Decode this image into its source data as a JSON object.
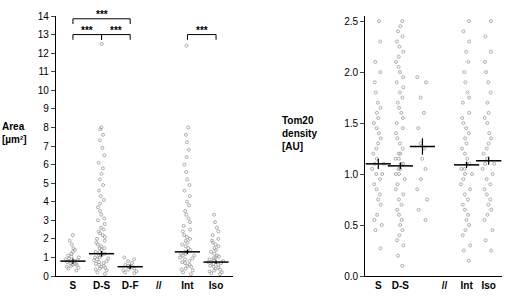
{
  "chart_data": [
    {
      "type": "strip",
      "y_label": "Area [µm²]",
      "categories": [
        "S",
        "D-S",
        "D-F",
        "//",
        "Int",
        "Iso"
      ],
      "values": [
        [
          0.3,
          0.4,
          0.45,
          0.5,
          0.55,
          0.6,
          0.6,
          0.65,
          0.7,
          0.75,
          0.8,
          0.8,
          0.85,
          0.9,
          0.95,
          1.0,
          1.05,
          1.1,
          1.2,
          1.3,
          1.4,
          1.5,
          1.7,
          1.9,
          2.2
        ],
        [
          0.1,
          0.2,
          0.3,
          0.35,
          0.4,
          0.45,
          0.5,
          0.55,
          0.6,
          0.65,
          0.7,
          0.75,
          0.8,
          0.85,
          0.9,
          0.95,
          1.0,
          1.0,
          1.1,
          1.1,
          1.2,
          1.2,
          1.3,
          1.3,
          1.4,
          1.5,
          1.5,
          1.6,
          1.7,
          1.8,
          1.9,
          2.0,
          2.1,
          2.2,
          2.3,
          2.4,
          2.5,
          2.6,
          2.8,
          3.0,
          3.1,
          3.3,
          3.5,
          3.7,
          3.9,
          4.1,
          4.3,
          4.6,
          4.9,
          5.2,
          5.5,
          5.8,
          6.1,
          6.5,
          6.9,
          7.3,
          7.6,
          7.9,
          8.0,
          12.5
        ],
        [
          0.15,
          0.2,
          0.25,
          0.3,
          0.35,
          0.4,
          0.45,
          0.5,
          0.55,
          0.6,
          0.7,
          0.8,
          0.9,
          1.0
        ],
        [],
        [
          0.1,
          0.2,
          0.3,
          0.35,
          0.4,
          0.5,
          0.55,
          0.6,
          0.7,
          0.75,
          0.8,
          0.9,
          0.95,
          1.0,
          1.1,
          1.1,
          1.2,
          1.2,
          1.3,
          1.3,
          1.4,
          1.5,
          1.6,
          1.7,
          1.8,
          1.9,
          2.0,
          2.1,
          2.2,
          2.4,
          2.5,
          2.7,
          2.9,
          3.1,
          3.3,
          3.5,
          3.8,
          4.0,
          4.3,
          4.6,
          4.9,
          5.2,
          5.6,
          6.0,
          6.4,
          6.8,
          7.2,
          7.6,
          8.0,
          12.4
        ],
        [
          0.1,
          0.15,
          0.2,
          0.25,
          0.3,
          0.35,
          0.4,
          0.45,
          0.5,
          0.55,
          0.6,
          0.65,
          0.7,
          0.75,
          0.75,
          0.8,
          0.85,
          0.9,
          0.95,
          1.0,
          1.05,
          1.1,
          1.2,
          1.3,
          1.4,
          1.5,
          1.6,
          1.7,
          1.8,
          1.9,
          2.0,
          2.2,
          2.4,
          2.6,
          2.9,
          3.3
        ]
      ],
      "medians": [
        0.8,
        1.2,
        0.5,
        null,
        1.3,
        0.75
      ],
      "errors": [
        0.15,
        0.15,
        0.12,
        null,
        0.12,
        0.1
      ],
      "color": "#999999",
      "marker": "circle-open",
      "ylim": [
        0,
        14
      ],
      "yticks": [
        0,
        1,
        2,
        3,
        4,
        5,
        6,
        7,
        8,
        9,
        10,
        11,
        12,
        13,
        14
      ],
      "annotations": [
        {
          "text": "***",
          "from": "S",
          "to": "D-F",
          "y": 13.85
        },
        {
          "text": "***",
          "from": "S",
          "to": "D-S",
          "y": 13.0
        },
        {
          "text": "***",
          "from": "D-S",
          "to": "D-F",
          "y": 13.0
        },
        {
          "text": "***",
          "from": "Int",
          "to": "Iso",
          "y": 13.0
        }
      ]
    },
    {
      "type": "strip",
      "y_label": "Tom20 density [AU]",
      "categories": [
        "S",
        "D-S",
        null,
        "//",
        "Int",
        "Iso"
      ],
      "values": [
        [
          0.27,
          0.45,
          0.5,
          0.55,
          0.6,
          0.7,
          0.75,
          0.8,
          0.85,
          0.9,
          0.95,
          1.0,
          1.0,
          1.05,
          1.1,
          1.1,
          1.15,
          1.2,
          1.25,
          1.3,
          1.35,
          1.4,
          1.45,
          1.5,
          1.55,
          1.6,
          1.65,
          1.7,
          1.8,
          1.9,
          2.0,
          2.1,
          2.3,
          2.5
        ],
        [
          0.1,
          0.2,
          0.3,
          0.35,
          0.4,
          0.45,
          0.5,
          0.55,
          0.6,
          0.65,
          0.7,
          0.75,
          0.8,
          0.85,
          0.9,
          0.95,
          1.0,
          1.0,
          1.05,
          1.05,
          1.1,
          1.1,
          1.15,
          1.15,
          1.2,
          1.2,
          1.25,
          1.3,
          1.35,
          1.4,
          1.45,
          1.5,
          1.55,
          1.6,
          1.65,
          1.7,
          1.75,
          1.8,
          1.85,
          1.9,
          1.95,
          2.0,
          2.05,
          2.1,
          2.15,
          2.2,
          2.25,
          2.3,
          2.35,
          2.4,
          2.45,
          2.5
        ],
        [
          0.55,
          0.65,
          0.75,
          0.85,
          0.95,
          1.05,
          1.15,
          1.25,
          1.3,
          1.45,
          1.6,
          1.75,
          1.9,
          1.95
        ],
        [],
        [
          0.15,
          0.25,
          0.3,
          0.4,
          0.45,
          0.5,
          0.55,
          0.6,
          0.65,
          0.7,
          0.75,
          0.8,
          0.85,
          0.9,
          0.95,
          1.0,
          1.0,
          1.05,
          1.05,
          1.1,
          1.1,
          1.15,
          1.2,
          1.25,
          1.3,
          1.35,
          1.4,
          1.45,
          1.5,
          1.55,
          1.6,
          1.7,
          1.75,
          1.8,
          1.9,
          2.0,
          2.1,
          2.2,
          2.3,
          2.4,
          2.5
        ],
        [
          0.25,
          0.35,
          0.45,
          0.55,
          0.6,
          0.65,
          0.7,
          0.75,
          0.8,
          0.85,
          0.9,
          0.95,
          1.0,
          1.05,
          1.1,
          1.1,
          1.15,
          1.2,
          1.25,
          1.3,
          1.35,
          1.4,
          1.5,
          1.55,
          1.6,
          1.7,
          1.8,
          1.9,
          2.0,
          2.1,
          2.2,
          2.35,
          2.5
        ]
      ],
      "medians": [
        1.1,
        1.08,
        1.27,
        null,
        1.09,
        1.13
      ],
      "errors": [
        0.05,
        0.03,
        0.08,
        null,
        0.03,
        0.04
      ],
      "color": "#999999",
      "marker": "circle-open",
      "ylim": [
        0,
        2.55
      ],
      "yticks": [
        {
          "value": 0,
          "label": "0.0"
        },
        0.5,
        {
          "value": 1,
          "label": "1.0"
        },
        1.5,
        {
          "value": 2,
          "label": "2.0"
        },
        2.5
      ]
    }
  ]
}
